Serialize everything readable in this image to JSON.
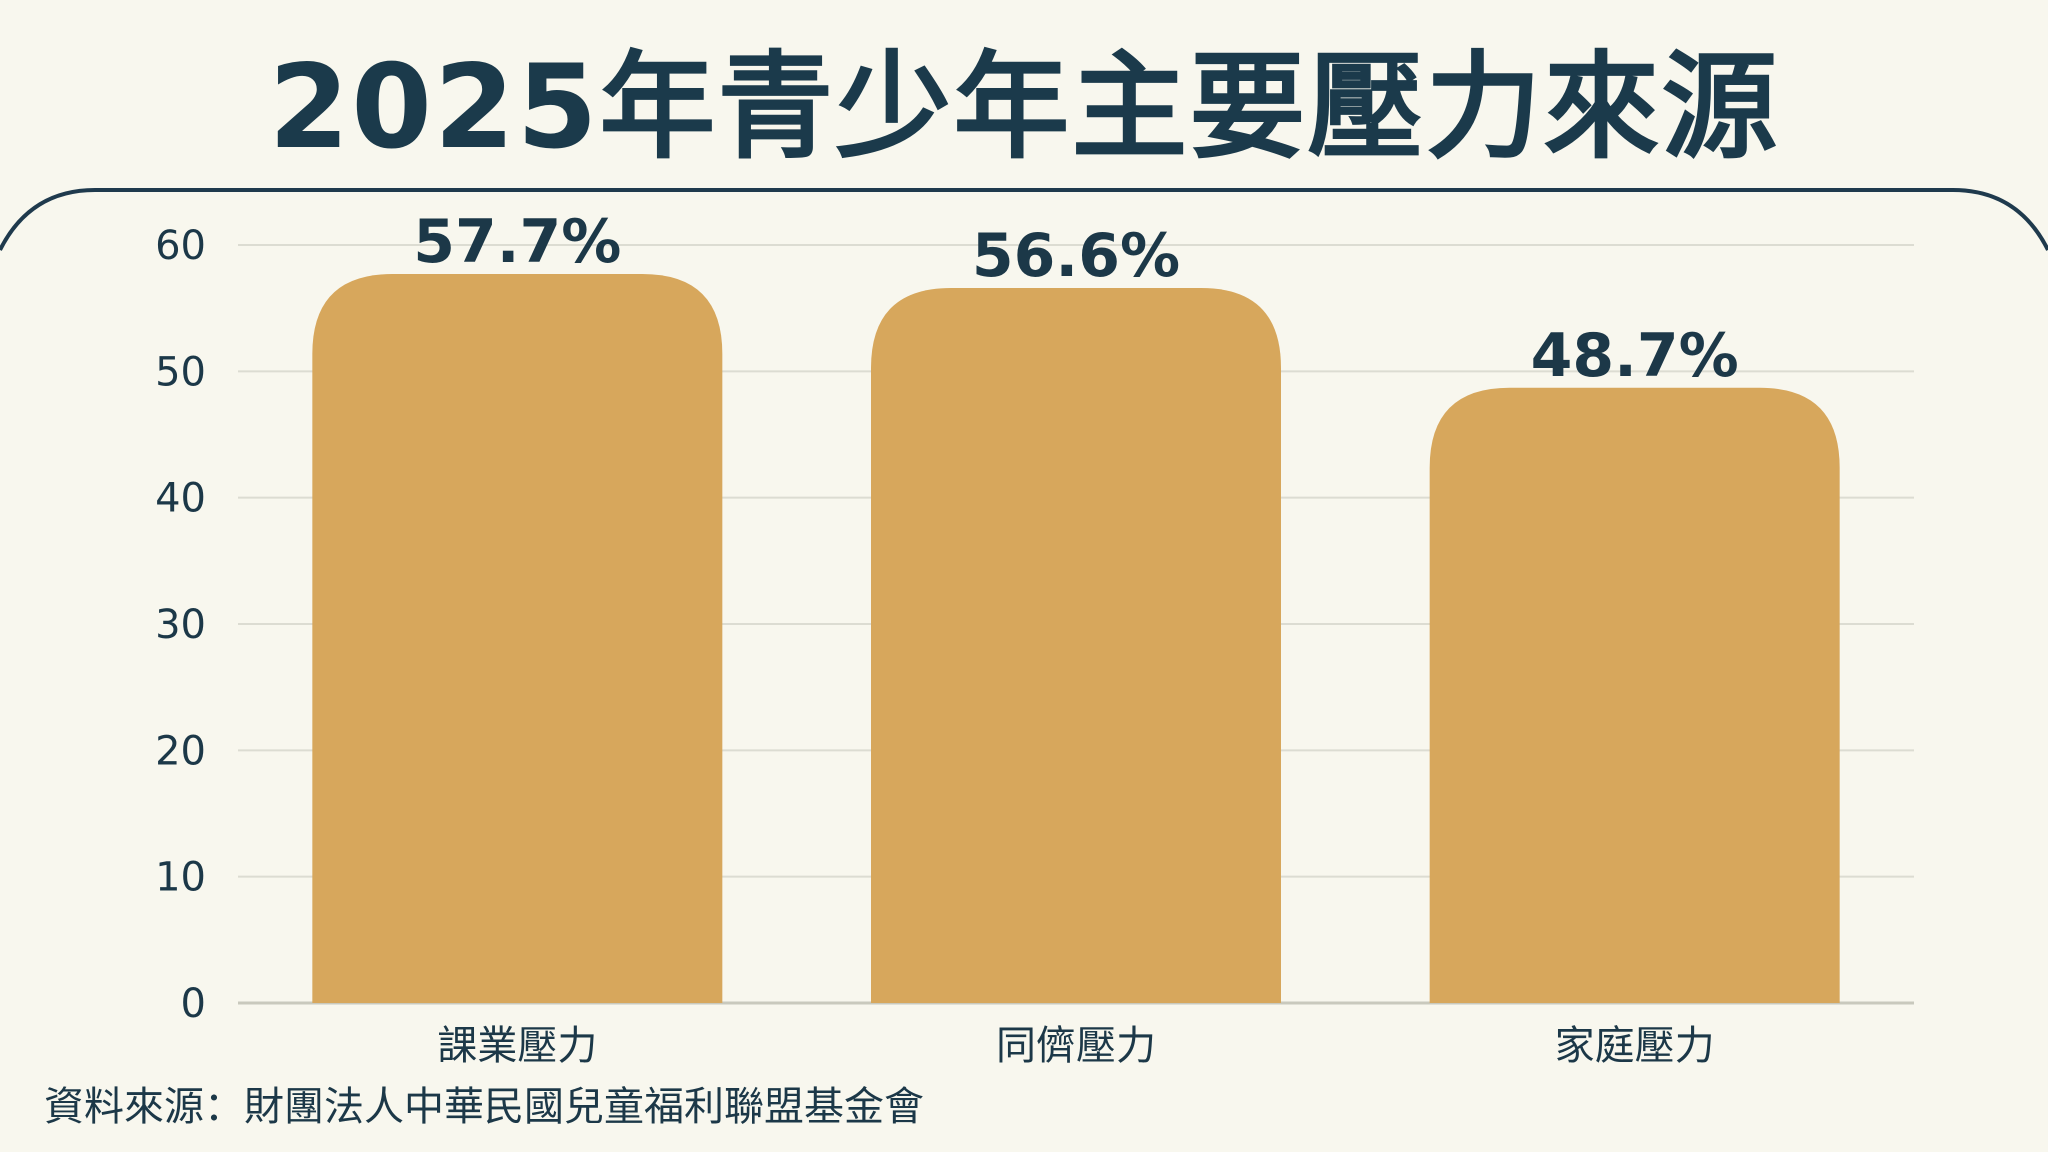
{
  "title": "2025年青少年主要壓力來源",
  "source": "資料來源：財團法人中華民國兒童福利聯盟基金會",
  "colors": {
    "bar": "#d7a75c",
    "text": "#1c3848",
    "grid": "#dcdcd2",
    "frame": "#1f3a4d",
    "background": "#f8f7ee"
  },
  "chart_data": {
    "type": "bar",
    "title": "2025年青少年主要壓力來源",
    "categories": [
      "課業壓力",
      "同儕壓力",
      "家庭壓力"
    ],
    "values": [
      57.7,
      56.6,
      48.7
    ],
    "value_labels": [
      "57.7%",
      "56.6%",
      "48.7%"
    ],
    "xlabel": "",
    "ylabel": "",
    "ylim": [
      0,
      60
    ],
    "yticks": [
      0,
      10,
      20,
      30,
      40,
      50,
      60
    ],
    "grid": true,
    "legend": "none"
  }
}
